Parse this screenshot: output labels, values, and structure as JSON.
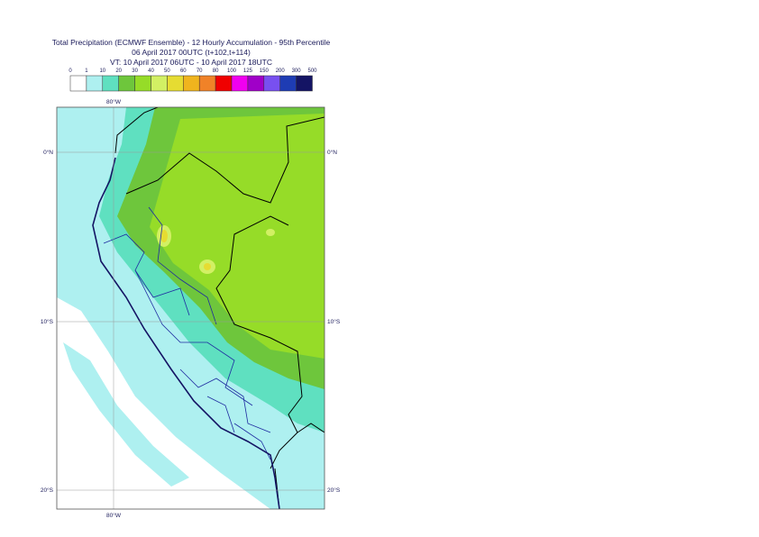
{
  "header": {
    "title": "Total Precipitation (ECMWF Ensemble) - 12 Hourly Accumulation - 95th Percentile",
    "base_time": "06 April 2017 00UTC (t+102,t+114)",
    "valid_time": "VT: 10 April 2017 06UTC - 10 April 2017 18UTC"
  },
  "legend": {
    "labels": [
      0,
      1,
      10,
      20,
      30,
      40,
      50,
      60,
      70,
      80,
      100,
      125,
      150,
      200,
      300,
      500
    ],
    "colors": [
      "#ffffff",
      "#aef0f0",
      "#5fe0c0",
      "#6ec63c",
      "#96dc28",
      "#d2f064",
      "#e6dc32",
      "#f0b41e",
      "#f08228",
      "#f00000",
      "#f000f0",
      "#a000c8",
      "#7850f0",
      "#1e3cb4",
      "#141464"
    ]
  },
  "map": {
    "lat_labels": [
      "0°N",
      "10°S",
      "20°S"
    ],
    "lon_labels": [
      "80°W"
    ]
  }
}
